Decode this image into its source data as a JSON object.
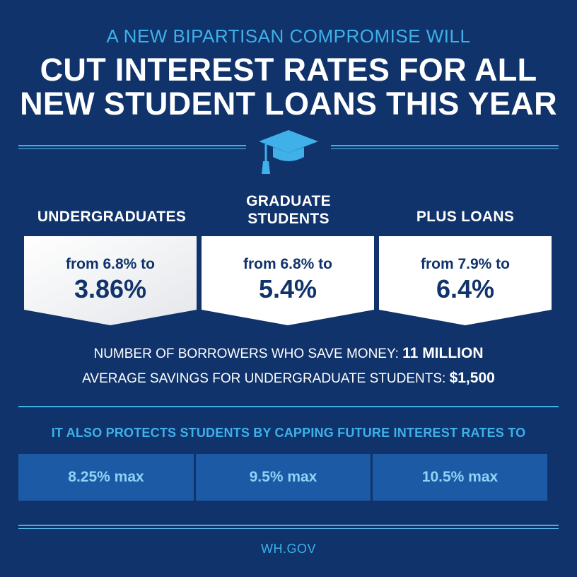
{
  "header": {
    "kicker": "A NEW BIPARTISAN COMPROMISE WILL",
    "headline_line1": "CUT INTEREST RATES FOR ALL",
    "headline_line2": "NEW STUDENT LOANS THIS YEAR",
    "icon": "graduation-cap-icon"
  },
  "loan_types": [
    {
      "label": "UNDERGRADUATES",
      "from": "from 6.8% to",
      "to": "3.86%"
    },
    {
      "label_line1": "GRADUATE",
      "label_line2": "STUDENTS",
      "from": "from 6.8% to",
      "to": "5.4%"
    },
    {
      "label": "PLUS LOANS",
      "from": "from 7.9% to",
      "to": "6.4%"
    }
  ],
  "stats": {
    "borrowers_label": "NUMBER OF BORROWERS WHO SAVE MONEY:",
    "borrowers_value": "11 MILLION",
    "savings_label": "AVERAGE SAVINGS FOR UNDERGRADUATE STUDENTS:",
    "savings_value": "$1,500"
  },
  "caps": {
    "heading": "IT ALSO PROTECTS STUDENTS BY CAPPING FUTURE INTEREST RATES TO",
    "values": [
      "8.25% max",
      "9.5% max",
      "10.5% max"
    ]
  },
  "footer": {
    "site": "WH.GOV"
  },
  "colors": {
    "background": "#10336b",
    "accent": "#3fb0e8",
    "cap_box": "#1c5aa5",
    "card": "#ffffff"
  }
}
